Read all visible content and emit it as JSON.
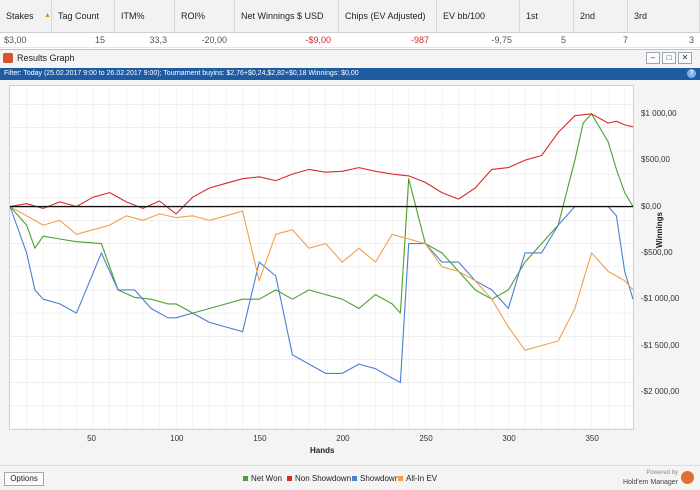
{
  "columns": [
    "Stakes",
    "Tag Count",
    "ITM%",
    "ROI%",
    "Net Winnings $ USD",
    "Chips (EV Adjusted)",
    "EV bb/100",
    "1st",
    "2nd",
    "3rd"
  ],
  "row": [
    "$3,00",
    "15",
    "33,3",
    "-20,00",
    "-$9,00",
    "-987",
    "-9,75",
    "5",
    "7",
    "3"
  ],
  "window": {
    "title": "Results Graph",
    "min": "–",
    "max": "□",
    "close": "✕"
  },
  "filter": "Filter: Today (25.02.2017 9:00 to 26.02.2017 9:00); Tournament buyins: $2,76+$0,24,$2,82+$0,18  Winnings: $0,00",
  "options_label": "Options",
  "brand": {
    "powered": "Powered by",
    "name": "Hold'em Manager"
  },
  "colors": {
    "accent": "#1f5ba3",
    "net_won": "#4aa02c",
    "non_showdown": "#d92b2b",
    "showdown": "#4a7fd4",
    "allin_ev": "#f2a04a",
    "neg": "#d02828"
  },
  "icons": [
    "app-icon",
    "sort-arrow-icon",
    "help-icon",
    "brand-logo-icon"
  ],
  "chart_data": {
    "type": "line",
    "xlabel": "Hands",
    "ylabel": "Winnings",
    "xlim": [
      0,
      375
    ],
    "ylim": [
      -2400,
      1300
    ],
    "x_ticks": [
      50,
      100,
      150,
      200,
      250,
      300,
      350
    ],
    "y_ticks": [
      1000,
      500,
      0,
      -500,
      -1000,
      -1500,
      -2000
    ],
    "y_tick_labels": [
      "$1 000,00",
      "$500,00",
      "$0,00",
      "-$500,00",
      "-$1 000,00",
      "-$1 500,00",
      "-$2 000,00"
    ],
    "series": [
      {
        "name": "Net Won",
        "color": "#4aa02c",
        "x": [
          0,
          10,
          15,
          20,
          30,
          40,
          55,
          65,
          75,
          85,
          95,
          100,
          110,
          120,
          130,
          140,
          150,
          160,
          170,
          180,
          190,
          200,
          210,
          220,
          230,
          235,
          240,
          250,
          260,
          270,
          280,
          290,
          300,
          310,
          320,
          330,
          335,
          340,
          345,
          350,
          355,
          360,
          365,
          370,
          375
        ],
        "y": [
          0,
          -200,
          -450,
          -320,
          -350,
          -380,
          -400,
          -900,
          -980,
          -1000,
          -1050,
          -1050,
          -1150,
          -1100,
          -1050,
          -1000,
          -1000,
          -900,
          -1000,
          -900,
          -950,
          -1000,
          -1100,
          -950,
          -1050,
          -1150,
          300,
          -400,
          -500,
          -700,
          -900,
          -1000,
          -900,
          -600,
          -400,
          -200,
          150,
          500,
          900,
          1000,
          850,
          700,
          400,
          150,
          0
        ]
      },
      {
        "name": "Non Showdown",
        "color": "#d92b2b",
        "x": [
          0,
          10,
          20,
          30,
          40,
          50,
          60,
          70,
          80,
          90,
          100,
          110,
          120,
          130,
          140,
          150,
          160,
          170,
          180,
          190,
          200,
          210,
          220,
          230,
          240,
          250,
          260,
          270,
          280,
          290,
          300,
          310,
          320,
          330,
          340,
          350,
          355,
          360,
          365,
          370,
          375
        ],
        "y": [
          0,
          30,
          -20,
          50,
          0,
          100,
          150,
          50,
          -20,
          60,
          -80,
          100,
          200,
          250,
          300,
          320,
          280,
          350,
          400,
          370,
          380,
          420,
          380,
          350,
          330,
          260,
          150,
          80,
          200,
          400,
          420,
          500,
          550,
          800,
          980,
          1000,
          950,
          900,
          920,
          880,
          860
        ]
      },
      {
        "name": "Showdown",
        "color": "#4a7fd4",
        "x": [
          0,
          10,
          15,
          20,
          30,
          40,
          55,
          65,
          75,
          85,
          95,
          100,
          110,
          120,
          130,
          140,
          150,
          160,
          170,
          180,
          190,
          200,
          210,
          220,
          230,
          235,
          240,
          250,
          260,
          270,
          280,
          290,
          300,
          310,
          320,
          330,
          340,
          350,
          355,
          360,
          365,
          370,
          375
        ],
        "y": [
          0,
          -500,
          -900,
          -1000,
          -1050,
          -1150,
          -500,
          -900,
          -900,
          -1100,
          -1200,
          -1200,
          -1150,
          -1250,
          -1300,
          -1350,
          -600,
          -750,
          -1600,
          -1700,
          -1800,
          -1800,
          -1700,
          -1750,
          -1850,
          -1900,
          -400,
          -400,
          -600,
          -600,
          -800,
          -900,
          -1100,
          -500,
          -500,
          -200,
          0,
          0,
          0,
          0,
          -100,
          -700,
          -1000
        ]
      },
      {
        "name": "All-In EV",
        "color": "#f2a04a",
        "x": [
          0,
          10,
          20,
          30,
          40,
          50,
          60,
          70,
          80,
          90,
          100,
          110,
          120,
          130,
          140,
          150,
          160,
          170,
          180,
          190,
          200,
          210,
          220,
          230,
          240,
          250,
          260,
          270,
          280,
          290,
          300,
          310,
          320,
          330,
          340,
          350,
          355,
          360,
          365,
          370,
          375
        ],
        "y": [
          0,
          -100,
          -200,
          -150,
          -300,
          -250,
          -200,
          -100,
          -150,
          -80,
          -120,
          -100,
          -150,
          -100,
          -50,
          -800,
          -300,
          -250,
          -450,
          -400,
          -600,
          -450,
          -600,
          -300,
          -350,
          -400,
          -650,
          -700,
          -800,
          -1000,
          -1300,
          -1550,
          -1500,
          -1450,
          -1100,
          -500,
          -600,
          -700,
          -750,
          -800,
          -900
        ]
      }
    ]
  }
}
